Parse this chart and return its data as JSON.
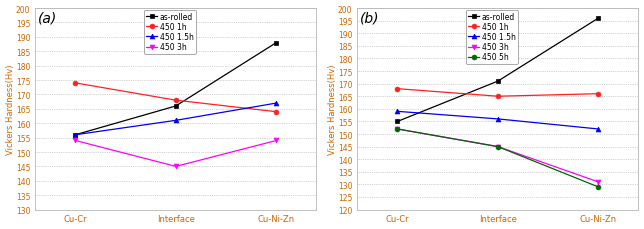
{
  "panel_a": {
    "label": "(a)",
    "x_labels": [
      "Cu-Cr",
      "Interface",
      "Cu-Ni-Zn"
    ],
    "series": [
      {
        "name": "as-rolled",
        "color": "#000000",
        "marker": "s",
        "linestyle": "-",
        "values": [
          156,
          166,
          188
        ]
      },
      {
        "name": "450 1h",
        "color": "#ff2020",
        "marker": "o",
        "linestyle": "-",
        "values": [
          174,
          168,
          164
        ]
      },
      {
        "name": "450 1.5h",
        "color": "#0000ee",
        "marker": "^",
        "linestyle": "-",
        "values": [
          156,
          161,
          167
        ]
      },
      {
        "name": "450 3h",
        "color": "#ff00ff",
        "marker": "v",
        "linestyle": "-",
        "values": [
          154,
          145,
          154
        ]
      }
    ],
    "ylabel": "Vickers Hardness(Hv)",
    "ylim": [
      130,
      200
    ],
    "yticks": [
      130,
      135,
      140,
      145,
      150,
      155,
      160,
      165,
      170,
      175,
      180,
      185,
      190,
      195,
      200
    ]
  },
  "panel_b": {
    "label": "(b)",
    "x_labels": [
      "Cu-Cr",
      "Interface",
      "Cu-Ni-Zn"
    ],
    "series": [
      {
        "name": "as-rolled",
        "color": "#000000",
        "marker": "s",
        "linestyle": "-",
        "values": [
          155,
          171,
          196
        ]
      },
      {
        "name": "450 1h",
        "color": "#ff2020",
        "marker": "o",
        "linestyle": "-",
        "values": [
          168,
          165,
          166
        ]
      },
      {
        "name": "450 1.5h",
        "color": "#0000ee",
        "marker": "^",
        "linestyle": "-",
        "values": [
          159,
          156,
          152
        ]
      },
      {
        "name": "450 3h",
        "color": "#ff00ff",
        "marker": "v",
        "linestyle": "-",
        "values": [
          152,
          145,
          131
        ]
      },
      {
        "name": "450 5h",
        "color": "#006600",
        "marker": "o",
        "linestyle": "-",
        "values": [
          152,
          145,
          129
        ]
      }
    ],
    "ylabel": "Vickers Hardness(Hv)",
    "ylim": [
      120,
      200
    ],
    "yticks": [
      120,
      125,
      130,
      135,
      140,
      145,
      150,
      155,
      160,
      165,
      170,
      175,
      180,
      185,
      190,
      195,
      200
    ]
  },
  "axis_color": "#cc6600",
  "grid_color": "#aaaaaa",
  "grid_linestyle": ":",
  "grid_linewidth": 0.5,
  "spine_color": "#aaaaaa",
  "spine_linewidth": 0.5,
  "marker_size": 3.5,
  "line_width": 0.9,
  "tick_fontsize": 5.5,
  "ylabel_fontsize": 6.0,
  "xlabel_fontsize": 6.0,
  "legend_fontsize": 5.5,
  "panel_label_fontsize": 10
}
